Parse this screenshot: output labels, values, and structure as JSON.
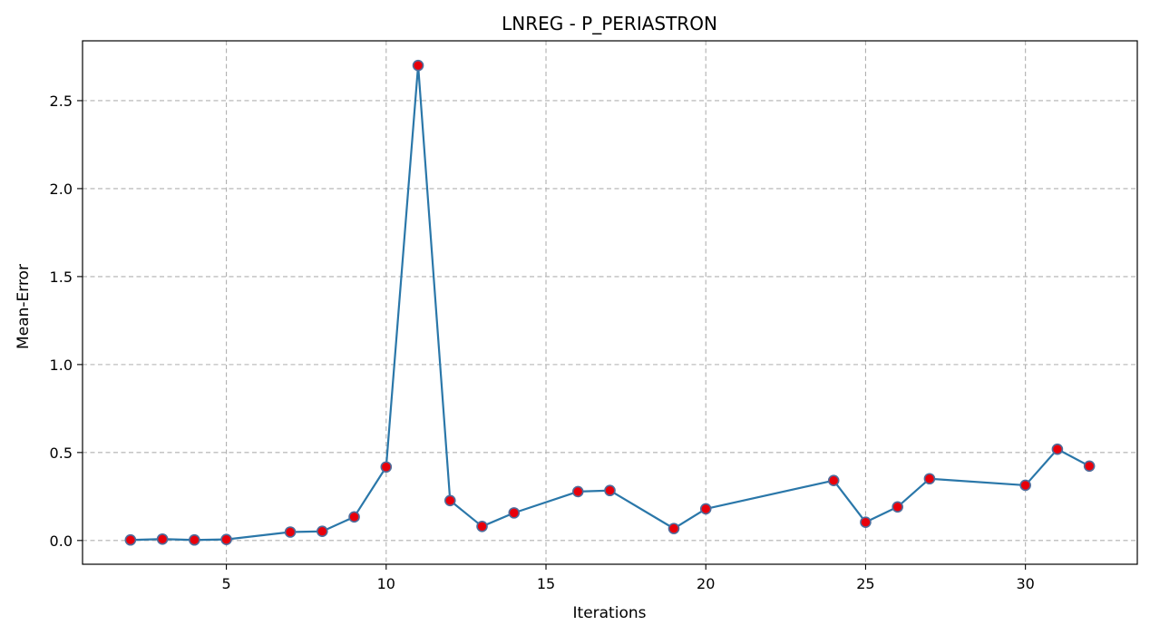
{
  "chart_data": {
    "type": "line",
    "title": "LNREG - P_PERIASTRON",
    "xlabel": "Iterations",
    "ylabel": "Mean-Error",
    "xlim": [
      0.5,
      33.5
    ],
    "ylim": [
      -0.135,
      2.84
    ],
    "xticks": [
      5,
      10,
      15,
      20,
      25,
      30
    ],
    "yticks": [
      0.0,
      0.5,
      1.0,
      1.5,
      2.0,
      2.5
    ],
    "ytick_labels": [
      "0.0",
      "0.5",
      "1.0",
      "1.5",
      "2.0",
      "2.5"
    ],
    "grid": true,
    "series": [
      {
        "x": [
          2,
          3,
          4,
          5,
          7,
          8,
          9,
          10,
          11,
          12,
          13,
          14,
          16,
          17,
          19,
          20,
          24,
          25,
          26,
          27,
          30,
          31,
          32
        ],
        "values": [
          0.003,
          0.008,
          0.003,
          0.006,
          0.048,
          0.052,
          0.134,
          0.418,
          2.7,
          0.227,
          0.08,
          0.157,
          0.278,
          0.284,
          0.068,
          0.18,
          0.341,
          0.104,
          0.191,
          0.351,
          0.314,
          0.519,
          0.423
        ],
        "line_color": "#2a77a9",
        "marker_face": "#e8000b",
        "marker_edge": "#4f6d9c"
      }
    ]
  }
}
